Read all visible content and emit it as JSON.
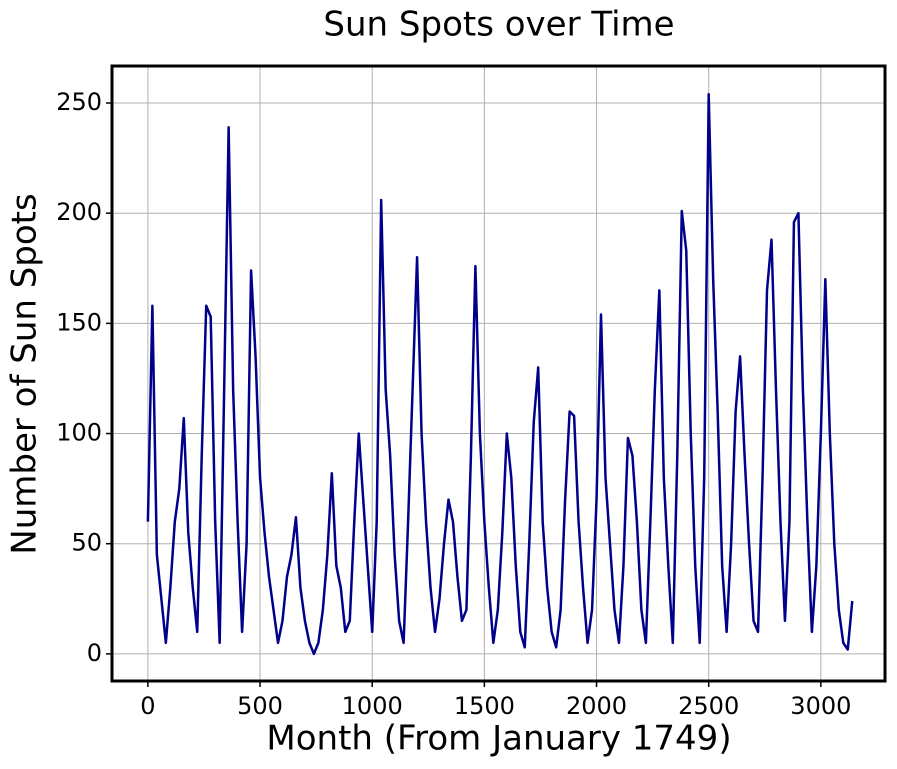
{
  "chart_data": {
    "type": "line",
    "title": "Sun Spots over Time",
    "xlabel": "Month (From January 1749)",
    "ylabel": "Number of Sun Spots",
    "x": [
      0,
      20,
      40,
      60,
      80,
      100,
      120,
      140,
      160,
      180,
      200,
      220,
      240,
      260,
      280,
      300,
      320,
      340,
      360,
      380,
      400,
      420,
      440,
      460,
      480,
      500,
      520,
      540,
      560,
      580,
      600,
      620,
      640,
      660,
      680,
      700,
      720,
      740,
      760,
      780,
      800,
      820,
      840,
      860,
      880,
      900,
      920,
      940,
      960,
      980,
      1000,
      1020,
      1040,
      1060,
      1080,
      1100,
      1120,
      1140,
      1160,
      1180,
      1200,
      1220,
      1240,
      1260,
      1280,
      1300,
      1320,
      1340,
      1360,
      1380,
      1400,
      1420,
      1440,
      1460,
      1480,
      1500,
      1520,
      1540,
      1560,
      1580,
      1600,
      1620,
      1640,
      1660,
      1680,
      1700,
      1720,
      1740,
      1760,
      1780,
      1800,
      1820,
      1840,
      1860,
      1880,
      1900,
      1920,
      1940,
      1960,
      1980,
      2000,
      2020,
      2040,
      2060,
      2080,
      2100,
      2120,
      2140,
      2160,
      2180,
      2200,
      2220,
      2240,
      2260,
      2280,
      2300,
      2320,
      2340,
      2360,
      2380,
      2400,
      2420,
      2440,
      2460,
      2480,
      2500,
      2520,
      2540,
      2560,
      2580,
      2600,
      2620,
      2640,
      2660,
      2680,
      2700,
      2720,
      2740,
      2760,
      2780,
      2800,
      2820,
      2840,
      2860,
      2880,
      2900,
      2920,
      2940,
      2960,
      2980,
      3000,
      3020,
      3040,
      3060,
      3080,
      3100,
      3120,
      3140
    ],
    "series": [
      {
        "color": "#00008b",
        "values": [
          60,
          158,
          45,
          25,
          5,
          30,
          60,
          75,
          107,
          55,
          30,
          10,
          90,
          158,
          153,
          60,
          5,
          120,
          239,
          120,
          60,
          10,
          50,
          174,
          135,
          80,
          55,
          35,
          20,
          5,
          15,
          35,
          45,
          62,
          30,
          15,
          5,
          0,
          5,
          20,
          45,
          82,
          40,
          30,
          10,
          15,
          60,
          100,
          70,
          40,
          10,
          60,
          206,
          120,
          90,
          45,
          15,
          5,
          60,
          120,
          180,
          100,
          60,
          30,
          10,
          25,
          50,
          70,
          60,
          35,
          15,
          20,
          90,
          176,
          100,
          60,
          30,
          5,
          20,
          55,
          100,
          80,
          40,
          10,
          3,
          50,
          105,
          130,
          60,
          30,
          10,
          3,
          20,
          70,
          110,
          108,
          60,
          30,
          5,
          20,
          70,
          154,
          80,
          50,
          20,
          5,
          40,
          98,
          90,
          60,
          20,
          5,
          60,
          120,
          165,
          80,
          40,
          5,
          90,
          201,
          183,
          100,
          40,
          5,
          80,
          254,
          170,
          110,
          40,
          10,
          50,
          110,
          135,
          90,
          50,
          15,
          10,
          80,
          165,
          188,
          120,
          60,
          15,
          60,
          196,
          200,
          120,
          60,
          10,
          40,
          100,
          170,
          100,
          50,
          20,
          5,
          2,
          24
        ]
      }
    ],
    "xlim": [
      -160,
      3286
    ],
    "ylim": [
      -12.3,
      266.8
    ],
    "xticks": [
      0,
      500,
      1000,
      1500,
      2000,
      2500,
      3000
    ],
    "yticks": [
      0,
      50,
      100,
      150,
      200,
      250
    ],
    "grid": true
  }
}
